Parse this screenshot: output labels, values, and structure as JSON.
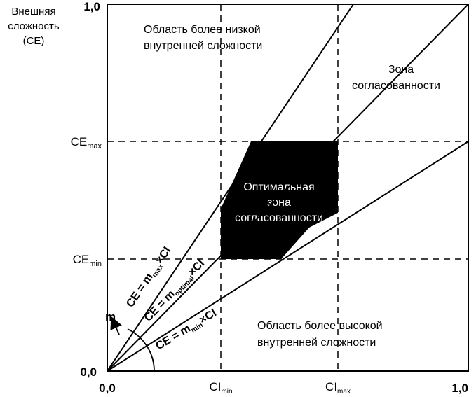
{
  "y_axis": {
    "label": [
      "Внешняя",
      "сложность",
      "(CE)"
    ],
    "top": "1,0",
    "origin": "0,0",
    "ce_max": {
      "main": "CE",
      "sub": "max"
    },
    "ce_min": {
      "main": "CE",
      "sub": "min"
    }
  },
  "x_axis": {
    "origin": "0,0",
    "end": "1,0",
    "ci_min": {
      "main": "CI",
      "sub": "min"
    },
    "ci_max": {
      "main": "CI",
      "sub": "max"
    }
  },
  "regions": {
    "upper": [
      "Область более низкой",
      "внутренней сложности"
    ],
    "lower": [
      "Область более высокой",
      "внутренней сложности"
    ],
    "zone": [
      "Зона",
      "согласованности"
    ],
    "optimal": [
      "Оптимальная",
      "зона",
      "согласованности"
    ]
  },
  "lines": {
    "top": {
      "pre": "CE = m",
      "sub": "max",
      "post": "×CI"
    },
    "middle": {
      "pre": "CE = m",
      "sub": "optimal",
      "post": "×CI"
    },
    "bottom": {
      "pre": "CE = m",
      "sub": "min",
      "post": "×CI"
    }
  },
  "angle_label": "m"
}
